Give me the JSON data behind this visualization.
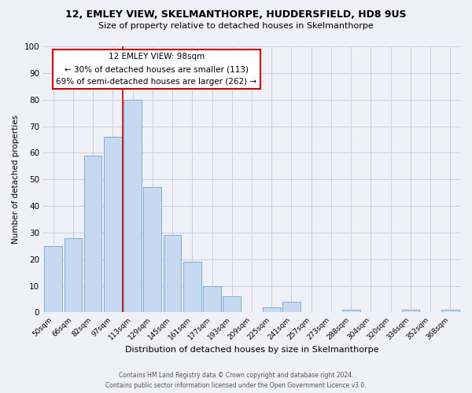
{
  "title": "12, EMLEY VIEW, SKELMANTHORPE, HUDDERSFIELD, HD8 9US",
  "subtitle": "Size of property relative to detached houses in Skelmanthorpe",
  "xlabel": "Distribution of detached houses by size in Skelmanthorpe",
  "ylabel": "Number of detached properties",
  "bar_labels": [
    "50sqm",
    "66sqm",
    "82sqm",
    "97sqm",
    "113sqm",
    "129sqm",
    "145sqm",
    "161sqm",
    "177sqm",
    "193sqm",
    "209sqm",
    "225sqm",
    "241sqm",
    "257sqm",
    "273sqm",
    "288sqm",
    "304sqm",
    "320sqm",
    "336sqm",
    "352sqm",
    "368sqm"
  ],
  "bar_values": [
    25,
    28,
    59,
    66,
    80,
    47,
    29,
    19,
    10,
    6,
    0,
    2,
    4,
    0,
    0,
    1,
    0,
    0,
    1,
    0,
    1
  ],
  "bar_color": "#c6d9f0",
  "bar_edge_color": "#7bafd4",
  "annotation_title": "12 EMLEY VIEW: 98sqm",
  "annotation_line1": "← 30% of detached houses are smaller (113)",
  "annotation_line2": "69% of semi-detached houses are larger (262) →",
  "annotation_box_color": "#ffffff",
  "annotation_box_edge": "#cc0000",
  "vline_color": "#cc0000",
  "vline_x_index": 4,
  "ylim": [
    0,
    100
  ],
  "yticks": [
    0,
    10,
    20,
    30,
    40,
    50,
    60,
    70,
    80,
    90,
    100
  ],
  "grid_color": "#ccccdd",
  "background_color": "#f0f0f8",
  "footer_line1": "Contains HM Land Registry data © Crown copyright and database right 2024.",
  "footer_line2": "Contains public sector information licensed under the Open Government Licence v3.0."
}
